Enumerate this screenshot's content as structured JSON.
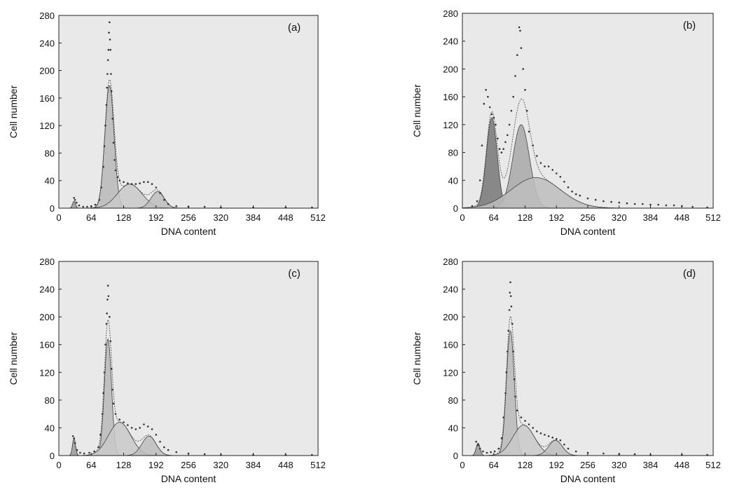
{
  "colors": {
    "background": "#ffffff",
    "plot_area": "#e9e9e9",
    "axis": "#222222",
    "curve": "#444444",
    "dots": "#333333",
    "peak_g1": "#b9b9b9",
    "peak_s": "#c9c9c9",
    "peak_g2": "#bdbdbd",
    "debris": "#9a9a9a",
    "b_g1": "#777777",
    "b_g2": "#a8a8a8",
    "b_s": "#bdbdbd"
  },
  "chart_data": [
    {
      "type": "area",
      "panel_label": "(a)",
      "xlabel": "DNA content",
      "ylabel": "Cell number",
      "xlim": [
        0,
        512
      ],
      "ylim": [
        0,
        280
      ],
      "xticks": [
        0,
        64,
        128,
        192,
        256,
        320,
        384,
        448,
        512
      ],
      "yticks": [
        0,
        40,
        80,
        120,
        160,
        200,
        240,
        280
      ],
      "components": [
        {
          "center": 30,
          "height": 10,
          "width": 3,
          "tone": "debris"
        },
        {
          "center": 100,
          "height": 178,
          "width": 9,
          "tone": "peak_g1"
        },
        {
          "center": 140,
          "height": 35,
          "width": 24,
          "tone": "peak_s"
        },
        {
          "center": 195,
          "height": 24,
          "width": 13,
          "tone": "peak_g2"
        }
      ],
      "scatter": [
        [
          30,
          15
        ],
        [
          32,
          12
        ],
        [
          35,
          8
        ],
        [
          40,
          4
        ],
        [
          48,
          2
        ],
        [
          56,
          2
        ],
        [
          64,
          3
        ],
        [
          72,
          5
        ],
        [
          80,
          12
        ],
        [
          84,
          30
        ],
        [
          88,
          60
        ],
        [
          90,
          90
        ],
        [
          92,
          120
        ],
        [
          94,
          150
        ],
        [
          95,
          175
        ],
        [
          96,
          195
        ],
        [
          97,
          215
        ],
        [
          98,
          230
        ],
        [
          99,
          255
        ],
        [
          100,
          270
        ],
        [
          101,
          245
        ],
        [
          102,
          230
        ],
        [
          103,
          195
        ],
        [
          104,
          170
        ],
        [
          106,
          130
        ],
        [
          108,
          95
        ],
        [
          110,
          70
        ],
        [
          112,
          55
        ],
        [
          116,
          45
        ],
        [
          120,
          40
        ],
        [
          128,
          38
        ],
        [
          136,
          36
        ],
        [
          144,
          35
        ],
        [
          152,
          35
        ],
        [
          160,
          36
        ],
        [
          168,
          38
        ],
        [
          176,
          38
        ],
        [
          184,
          35
        ],
        [
          192,
          30
        ],
        [
          200,
          22
        ],
        [
          208,
          12
        ],
        [
          216,
          6
        ],
        [
          232,
          3
        ],
        [
          256,
          2
        ],
        [
          288,
          2
        ],
        [
          320,
          1
        ],
        [
          384,
          1
        ],
        [
          448,
          1
        ],
        [
          500,
          1
        ]
      ]
    },
    {
      "type": "area",
      "panel_label": "(b)",
      "xlabel": "DNA content",
      "ylabel": "Cell number",
      "xlim": [
        0,
        512
      ],
      "ylim": [
        0,
        280
      ],
      "xticks": [
        0,
        64,
        128,
        192,
        256,
        320,
        384,
        448,
        512
      ],
      "yticks": [
        0,
        40,
        80,
        120,
        160,
        200,
        240,
        280
      ],
      "components": [
        {
          "center": 60,
          "height": 130,
          "width": 11,
          "tone": "b_g1"
        },
        {
          "center": 120,
          "height": 120,
          "width": 17,
          "tone": "b_g2"
        },
        {
          "center": 150,
          "height": 44,
          "width": 50,
          "tone": "b_s"
        }
      ],
      "scatter": [
        [
          20,
          3
        ],
        [
          30,
          10
        ],
        [
          36,
          40
        ],
        [
          40,
          90
        ],
        [
          44,
          150
        ],
        [
          48,
          170
        ],
        [
          52,
          160
        ],
        [
          56,
          145
        ],
        [
          60,
          135
        ],
        [
          64,
          130
        ],
        [
          68,
          120
        ],
        [
          72,
          100
        ],
        [
          76,
          85
        ],
        [
          80,
          80
        ],
        [
          84,
          85
        ],
        [
          88,
          95
        ],
        [
          92,
          105
        ],
        [
          96,
          120
        ],
        [
          100,
          140
        ],
        [
          104,
          160
        ],
        [
          108,
          190
        ],
        [
          112,
          220
        ],
        [
          116,
          260
        ],
        [
          118,
          255
        ],
        [
          120,
          230
        ],
        [
          124,
          200
        ],
        [
          128,
          170
        ],
        [
          132,
          140
        ],
        [
          136,
          110
        ],
        [
          144,
          90
        ],
        [
          152,
          75
        ],
        [
          160,
          65
        ],
        [
          168,
          60
        ],
        [
          176,
          60
        ],
        [
          184,
          55
        ],
        [
          192,
          50
        ],
        [
          200,
          45
        ],
        [
          208,
          38
        ],
        [
          216,
          30
        ],
        [
          224,
          24
        ],
        [
          232,
          20
        ],
        [
          240,
          18
        ],
        [
          256,
          14
        ],
        [
          272,
          12
        ],
        [
          288,
          10
        ],
        [
          304,
          9
        ],
        [
          320,
          8
        ],
        [
          336,
          7
        ],
        [
          352,
          6
        ],
        [
          368,
          6
        ],
        [
          384,
          5
        ],
        [
          400,
          5
        ],
        [
          416,
          4
        ],
        [
          432,
          4
        ],
        [
          448,
          3
        ],
        [
          470,
          2
        ],
        [
          500,
          1
        ]
      ]
    },
    {
      "type": "area",
      "panel_label": "(c)",
      "xlabel": "DNA content",
      "ylabel": "Cell number",
      "xlim": [
        0,
        512
      ],
      "ylim": [
        0,
        280
      ],
      "xticks": [
        0,
        64,
        128,
        192,
        256,
        320,
        384,
        448,
        512
      ],
      "yticks": [
        0,
        40,
        80,
        120,
        160,
        200,
        240,
        280
      ],
      "components": [
        {
          "center": 30,
          "height": 25,
          "width": 3,
          "tone": "debris"
        },
        {
          "center": 97,
          "height": 168,
          "width": 7,
          "tone": "peak_g1"
        },
        {
          "center": 120,
          "height": 48,
          "width": 22,
          "tone": "peak_s"
        },
        {
          "center": 178,
          "height": 28,
          "width": 14,
          "tone": "peak_g2"
        }
      ],
      "scatter": [
        [
          28,
          28
        ],
        [
          30,
          25
        ],
        [
          32,
          18
        ],
        [
          36,
          8
        ],
        [
          42,
          4
        ],
        [
          50,
          3
        ],
        [
          60,
          4
        ],
        [
          70,
          6
        ],
        [
          78,
          12
        ],
        [
          82,
          30
        ],
        [
          86,
          60
        ],
        [
          88,
          90
        ],
        [
          90,
          120
        ],
        [
          92,
          160
        ],
        [
          94,
          190
        ],
        [
          95,
          205
        ],
        [
          96,
          225
        ],
        [
          97,
          245
        ],
        [
          98,
          230
        ],
        [
          100,
          200
        ],
        [
          102,
          165
        ],
        [
          104,
          125
        ],
        [
          106,
          95
        ],
        [
          108,
          75
        ],
        [
          112,
          60
        ],
        [
          120,
          52
        ],
        [
          128,
          48
        ],
        [
          136,
          44
        ],
        [
          144,
          40
        ],
        [
          152,
          38
        ],
        [
          160,
          40
        ],
        [
          168,
          45
        ],
        [
          176,
          42
        ],
        [
          184,
          38
        ],
        [
          192,
          30
        ],
        [
          200,
          20
        ],
        [
          208,
          12
        ],
        [
          216,
          8
        ],
        [
          232,
          5
        ],
        [
          256,
          3
        ],
        [
          288,
          2
        ],
        [
          320,
          1
        ],
        [
          384,
          1
        ],
        [
          448,
          1
        ],
        [
          500,
          1
        ]
      ]
    },
    {
      "type": "area",
      "panel_label": "(d)",
      "xlabel": "DNA content",
      "ylabel": "Cell number",
      "xlim": [
        0,
        512
      ],
      "ylim": [
        0,
        280
      ],
      "xticks": [
        0,
        64,
        128,
        192,
        256,
        320,
        384,
        448,
        512
      ],
      "yticks": [
        0,
        40,
        80,
        120,
        160,
        200,
        240,
        280
      ],
      "components": [
        {
          "center": 32,
          "height": 18,
          "width": 4,
          "tone": "debris"
        },
        {
          "center": 98,
          "height": 180,
          "width": 8,
          "tone": "peak_g1"
        },
        {
          "center": 125,
          "height": 44,
          "width": 22,
          "tone": "peak_s"
        },
        {
          "center": 190,
          "height": 22,
          "width": 14,
          "tone": "peak_g2"
        }
      ],
      "scatter": [
        [
          28,
          20
        ],
        [
          32,
          15
        ],
        [
          36,
          10
        ],
        [
          42,
          6
        ],
        [
          50,
          4
        ],
        [
          58,
          5
        ],
        [
          66,
          6
        ],
        [
          74,
          10
        ],
        [
          80,
          25
        ],
        [
          84,
          55
        ],
        [
          88,
          90
        ],
        [
          90,
          120
        ],
        [
          92,
          150
        ],
        [
          94,
          180
        ],
        [
          96,
          210
        ],
        [
          97,
          235
        ],
        [
          98,
          250
        ],
        [
          99,
          230
        ],
        [
          100,
          215
        ],
        [
          102,
          190
        ],
        [
          104,
          150
        ],
        [
          106,
          110
        ],
        [
          108,
          85
        ],
        [
          112,
          65
        ],
        [
          120,
          55
        ],
        [
          128,
          50
        ],
        [
          136,
          45
        ],
        [
          144,
          40
        ],
        [
          152,
          35
        ],
        [
          160,
          32
        ],
        [
          168,
          30
        ],
        [
          176,
          28
        ],
        [
          184,
          26
        ],
        [
          192,
          24
        ],
        [
          200,
          22
        ],
        [
          208,
          16
        ],
        [
          216,
          10
        ],
        [
          232,
          6
        ],
        [
          256,
          4
        ],
        [
          288,
          3
        ],
        [
          320,
          2
        ],
        [
          352,
          2
        ],
        [
          384,
          1
        ],
        [
          448,
          1
        ],
        [
          500,
          1
        ]
      ]
    }
  ]
}
